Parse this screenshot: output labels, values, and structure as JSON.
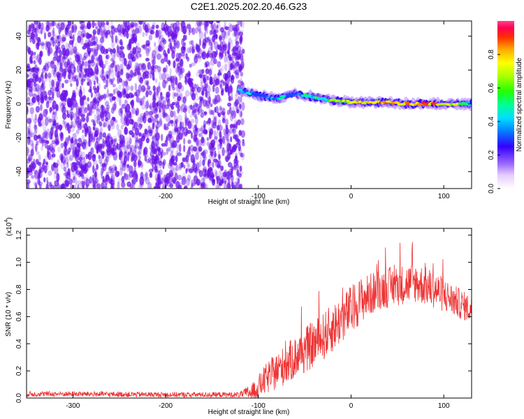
{
  "title": "C2E1.2025.202.20.46.G23",
  "colors": {
    "snr_line": "#ee3333",
    "psd_scatter": "#6a10e8",
    "axis": "#000000"
  },
  "chart_data": [
    {
      "type": "heatmap",
      "xlabel": "Height of straight line (km)",
      "ylabel": "Frequency (Hz)",
      "xlim": [
        -350,
        130
      ],
      "ylim": [
        -50,
        49
      ],
      "x_ticks": [
        {
          "value": -300,
          "label": "-300"
        },
        {
          "value": -200,
          "label": "-200"
        },
        {
          "value": -100,
          "label": "-100"
        },
        {
          "value": 0,
          "label": "0"
        },
        {
          "value": 100,
          "label": "100"
        }
      ],
      "y_ticks": [
        {
          "value": -40,
          "label": "-40"
        },
        {
          "value": -20,
          "label": "-20"
        },
        {
          "value": 0,
          "label": "0"
        },
        {
          "value": 20,
          "label": "20"
        },
        {
          "value": 40,
          "label": "40"
        }
      ],
      "noise_region": {
        "x_range": [
          -350,
          -116
        ],
        "amplitude": 0.15
      },
      "signal_track": {
        "x": [
          -120,
          -100,
          -80,
          -60,
          -40,
          -20,
          0,
          20,
          40,
          60,
          80,
          100,
          130
        ],
        "freq": [
          8,
          5,
          3,
          6,
          4,
          2,
          1,
          1,
          1,
          0,
          0,
          0,
          0
        ],
        "amplitude": [
          0.45,
          0.5,
          0.55,
          0.5,
          0.6,
          0.7,
          0.85,
          0.9,
          0.9,
          0.95,
          0.95,
          0.9,
          0.6
        ]
      },
      "colorbar": {
        "label": "Normalized spectral amplitude",
        "range": [
          0,
          1
        ],
        "ticks": [
          {
            "value": 0.0,
            "label": "0.0"
          },
          {
            "value": 0.2,
            "label": "0.2"
          },
          {
            "value": 0.4,
            "label": "0.4"
          },
          {
            "value": 0.6,
            "label": "0.6"
          },
          {
            "value": 0.8,
            "label": "0.8"
          }
        ]
      }
    },
    {
      "type": "line",
      "xlabel": "Height of straight line (km)",
      "ylabel": "SNR (10 * v/v)",
      "scale_label": "(x10",
      "scale_exp": "4",
      "xlim": [
        -350,
        130
      ],
      "ylim": [
        0,
        1.25
      ],
      "x_ticks": [
        {
          "value": -300,
          "label": "-300"
        },
        {
          "value": -200,
          "label": "-200"
        },
        {
          "value": -100,
          "label": "-100"
        },
        {
          "value": 0,
          "label": "0"
        },
        {
          "value": 100,
          "label": "100"
        }
      ],
      "y_ticks": [
        {
          "value": 0.0,
          "label": "0.0"
        },
        {
          "value": 0.2,
          "label": "0.2"
        },
        {
          "value": 0.4,
          "label": "0.4"
        },
        {
          "value": 0.6,
          "label": "0.6"
        },
        {
          "value": 0.8,
          "label": "0.8"
        },
        {
          "value": 1.0,
          "label": "1.0"
        },
        {
          "value": 1.2,
          "label": "1.2"
        }
      ],
      "series": [
        {
          "envelope_x": [
            -350,
            -300,
            -200,
            -120,
            -105,
            -90,
            -70,
            -50,
            -30,
            -10,
            0,
            10,
            30,
            50,
            70,
            90,
            110,
            130
          ],
          "envelope_y": [
            0.03,
            0.03,
            0.025,
            0.025,
            0.05,
            0.15,
            0.25,
            0.35,
            0.45,
            0.58,
            0.65,
            0.72,
            0.8,
            0.83,
            0.85,
            0.8,
            0.72,
            0.65
          ],
          "fluctuation": [
            0.02,
            0.02,
            0.02,
            0.02,
            0.07,
            0.12,
            0.15,
            0.17,
            0.18,
            0.18,
            0.18,
            0.17,
            0.15,
            0.15,
            0.15,
            0.14,
            0.12,
            0.1
          ]
        }
      ]
    }
  ]
}
